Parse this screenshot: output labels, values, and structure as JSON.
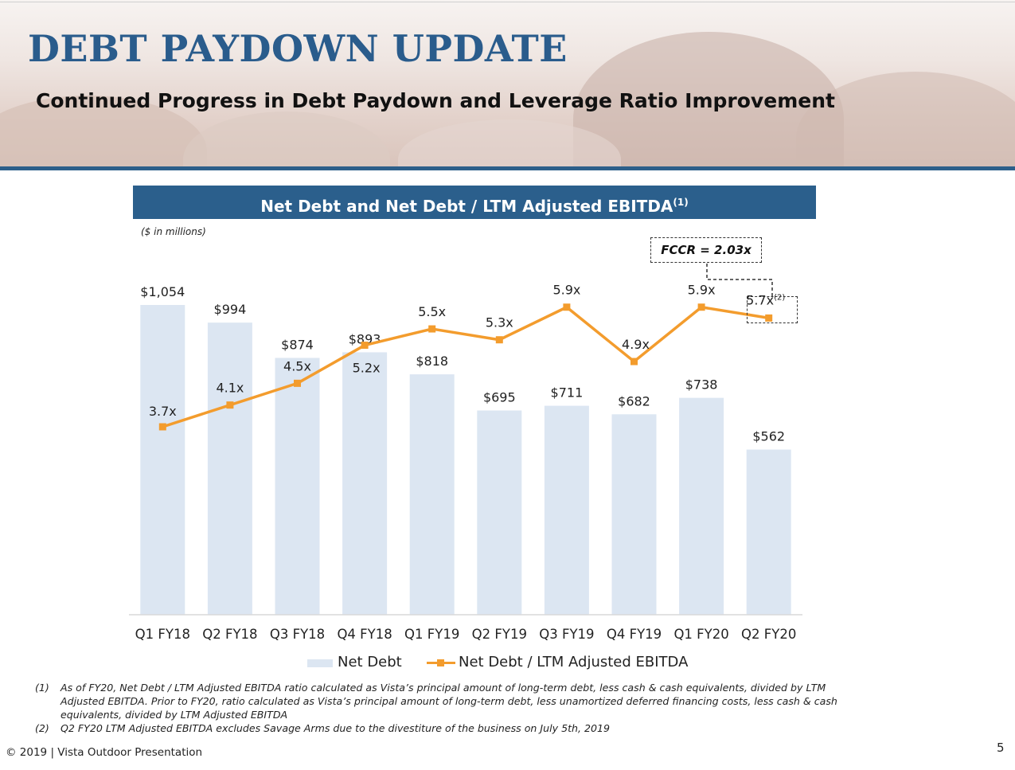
{
  "slide": {
    "title": "DEBT PAYDOWN UPDATE",
    "subtitle": "Continued Progress in Debt Paydown and Leverage Ratio Improvement",
    "chart_banner": "Net Debt and Net Debt / LTM Adjusted EBITDA",
    "chart_banner_note": "(1)",
    "units_note": "($ in millions)",
    "fccr_callout": "FCCR = 2.03x",
    "footer": "© 2019  |  Vista Outdoor Presentation",
    "page_number": "5",
    "colors": {
      "brand_blue": "#2b5f8c",
      "bar": "#dce6f2",
      "line": "#f39c2d"
    }
  },
  "legend": {
    "bar_label": "Net Debt",
    "line_label": "Net Debt / LTM Adjusted EBITDA"
  },
  "footnotes": [
    {
      "mark": "(1)",
      "text": "As of FY20, Net Debt / LTM Adjusted EBITDA ratio calculated as Vista’s principal amount of long-term debt, less cash & cash equivalents, divided by LTM Adjusted EBITDA. Prior to FY20, ratio calculated as Vista’s principal amount of long-term debt, less unamortized deferred financing costs, less cash & cash equivalents, divided by LTM Adjusted EBITDA"
    },
    {
      "mark": "(2)",
      "text": "Q2 FY20 LTM Adjusted EBITDA excludes Savage Arms due to the divestiture of the business on July 5th, 2019"
    }
  ],
  "chart_data": {
    "type": "bar",
    "categories": [
      "Q1 FY18",
      "Q2 FY18",
      "Q3 FY18",
      "Q4 FY18",
      "Q1 FY19",
      "Q2 FY19",
      "Q3 FY19",
      "Q4 FY19",
      "Q1 FY20",
      "Q2 FY20"
    ],
    "series": [
      {
        "name": "Net Debt",
        "type": "bar",
        "values": [
          1054,
          994,
          874,
          893,
          818,
          695,
          711,
          682,
          738,
          562
        ],
        "labels": [
          "$1,054",
          "$994",
          "$874",
          "$893",
          "$818",
          "$695",
          "$711",
          "$682",
          "$738",
          "$562"
        ],
        "color": "#dce6f2"
      },
      {
        "name": "Net Debt / LTM Adjusted EBITDA",
        "type": "line",
        "values": [
          3.7,
          4.1,
          4.5,
          5.2,
          5.5,
          5.3,
          5.9,
          4.9,
          5.9,
          5.7
        ],
        "labels": [
          "3.7x",
          "4.1x",
          "4.5x",
          "5.2x",
          "5.5x",
          "5.3x",
          "5.9x",
          "4.9x",
          "5.9x",
          "5.7x"
        ],
        "label_notes": [
          "",
          "",
          "",
          "",
          "",
          "",
          "",
          "",
          "",
          "(2)"
        ],
        "color": "#f39c2d"
      }
    ],
    "ylim_bars": [
      0,
      1100
    ],
    "legend_position": "bottom",
    "grid": false
  }
}
